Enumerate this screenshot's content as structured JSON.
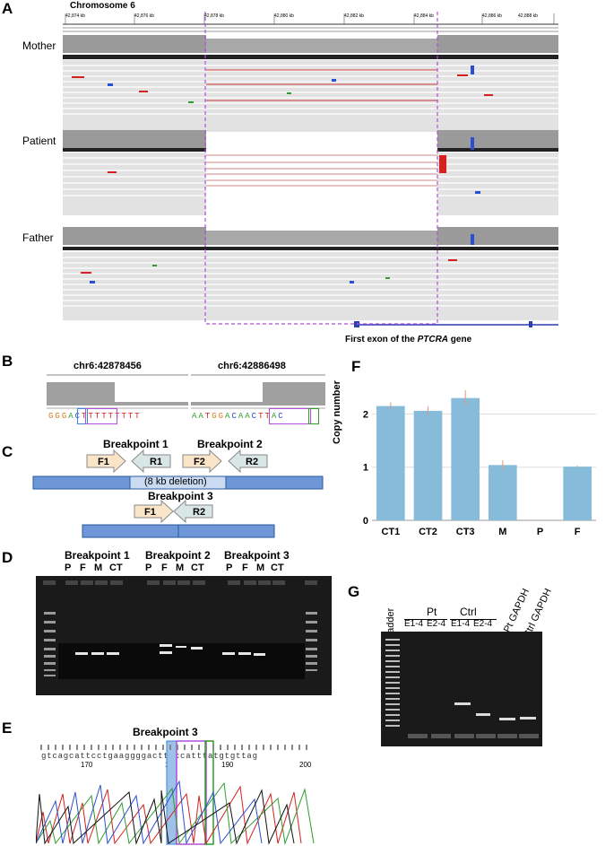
{
  "panels": {
    "A": "A",
    "B": "B",
    "C": "C",
    "D": "D",
    "E": "E",
    "F": "F",
    "G": "G"
  },
  "panel_a": {
    "title": "Chromosome 6",
    "ticks": [
      "42,874 kb",
      "42,876 kb",
      "42,878 kb",
      "42,880 kb",
      "42,882 kb",
      "42,884 kb",
      "42,886 kb",
      "42,888 kb",
      "42,890 kb"
    ],
    "tracks": [
      "Mother",
      "Patient",
      "Father"
    ],
    "caption_prefix": "First exon of the ",
    "caption_gene": "PTCRA",
    "caption_suffix": " gene"
  },
  "panel_b": {
    "left_title": "chr6:42878456",
    "right_title": "chr6:42886498",
    "left_seq": [
      "G",
      "G",
      "G",
      "A",
      "C",
      "T",
      "T",
      "T",
      "T",
      "T",
      "T",
      "T",
      "T",
      "T"
    ],
    "right_seq": [
      "A",
      "A",
      "T",
      "G",
      "G",
      "A",
      "C",
      "A",
      "A",
      "C",
      "T",
      "T",
      "A",
      "C"
    ],
    "colors": {
      "A": "#2e9c2e",
      "C": "#2a4fd4",
      "G": "#d87b1a",
      "T": "#d62020"
    }
  },
  "panel_c": {
    "bp1": "Breakpoint 1",
    "bp2": "Breakpoint 2",
    "bp3": "Breakpoint 3",
    "deletion": "(8 kb deletion)",
    "primers": {
      "F1": "F1",
      "R1": "R1",
      "F2": "F2",
      "R2": "R2"
    }
  },
  "panel_d": {
    "groups": [
      "Breakpoint 1",
      "Breakpoint 2",
      "Breakpoint 3"
    ],
    "lanes": [
      "P",
      "F",
      "M",
      "CT"
    ]
  },
  "panel_e": {
    "title": "Breakpoint 3",
    "sequence": "gtcagcattcctgaaggggacttaccatttatgtgttag",
    "ticks": [
      "170",
      "180",
      "190",
      "200"
    ]
  },
  "panel_f": {
    "chart_data": {
      "type": "bar",
      "categories": [
        "CT1",
        "CT2",
        "CT3",
        "M",
        "P",
        "F"
      ],
      "values": [
        2.15,
        2.06,
        2.3,
        1.04,
        0.0,
        1.01
      ],
      "errors": [
        0.07,
        0.08,
        0.15,
        0.09,
        0.0,
        0.02
      ],
      "ylabel": "Copy number",
      "ylim": [
        0,
        2.7
      ],
      "yticks": [
        "0",
        "1",
        "2"
      ],
      "bar_color": "#86bcd9",
      "error_color": "#e8957a",
      "grid": true
    }
  },
  "panel_g": {
    "ladder": "Ladder",
    "pt": "Pt",
    "ctrl": "Ctrl",
    "e14a": "E1-4",
    "e24a": "E2-4",
    "e14b": "E1-4",
    "e24b": "E2-4",
    "pt_gapdh": "Pt GAPDH",
    "ctrl_gapdh": "Ctrl GAPDH"
  }
}
